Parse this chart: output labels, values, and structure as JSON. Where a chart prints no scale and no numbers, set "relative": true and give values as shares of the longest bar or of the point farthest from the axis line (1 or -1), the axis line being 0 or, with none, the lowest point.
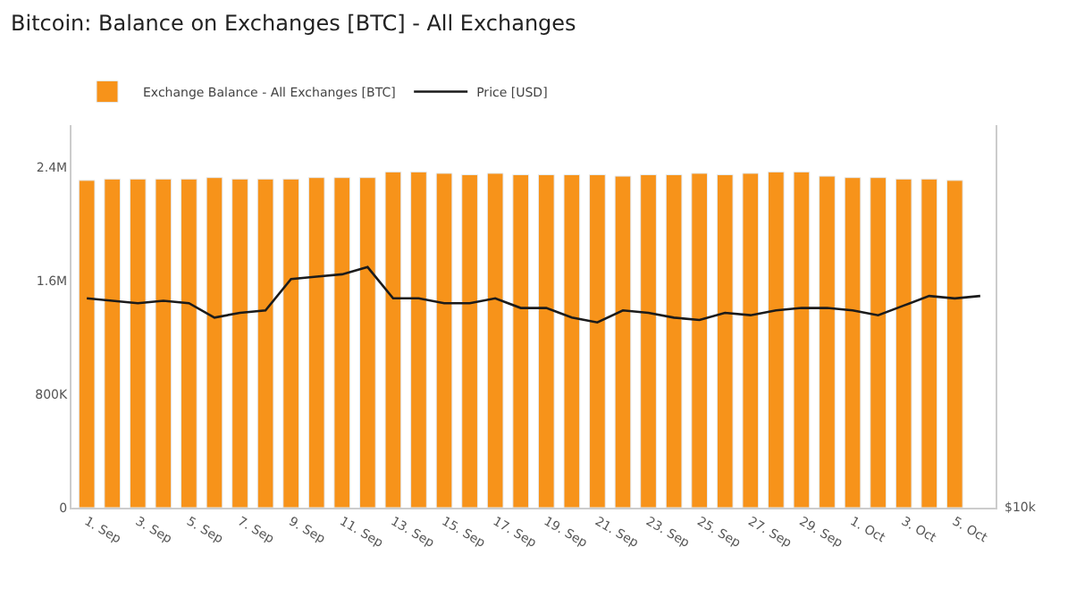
{
  "chart_data": [
    {
      "type": "bar",
      "title": "Bitcoin: Balance on Exchanges [BTC] - All Exchanges",
      "categories": [
        "1. Sep",
        null,
        "3. Sep",
        null,
        "5. Sep",
        null,
        "7. Sep",
        null,
        "9. Sep",
        null,
        "11. Sep",
        null,
        "13. Sep",
        null,
        "15. Sep",
        null,
        "17. Sep",
        null,
        "19. Sep",
        null,
        "21. Sep",
        null,
        "23. Sep",
        null,
        "25. Sep",
        null,
        "27. Sep",
        null,
        "29. Sep",
        null,
        "1. Oct",
        null,
        "3. Oct",
        null,
        "5. Oct",
        null
      ],
      "series": [
        {
          "name": "Exchange Balance - All Exchanges [BTC]",
          "color": "#f7931a",
          "values": [
            2310000,
            2320000,
            2320000,
            2320000,
            2320000,
            2330000,
            2320000,
            2320000,
            2320000,
            2330000,
            2330000,
            2330000,
            2370000,
            2370000,
            2360000,
            2350000,
            2360000,
            2350000,
            2350000,
            2350000,
            2350000,
            2340000,
            2350000,
            2350000,
            2360000,
            2350000,
            2360000,
            2370000,
            2370000,
            2340000,
            2330000,
            2330000,
            2320000,
            2320000,
            2310000,
            null
          ]
        }
      ],
      "ylim": [
        0,
        2700000
      ],
      "yticks": [
        {
          "value": 0,
          "label": "0"
        },
        {
          "value": 800000,
          "label": "800K"
        },
        {
          "value": 1600000,
          "label": "1.6M"
        },
        {
          "value": 2400000,
          "label": "2.4M"
        }
      ],
      "legend": "top left",
      "grid": false
    },
    {
      "type": "line",
      "relative": true,
      "categories": [
        null,
        null,
        null,
        null,
        null,
        null,
        null,
        null,
        null,
        null,
        null,
        null,
        null,
        null,
        null,
        null,
        null,
        null,
        null,
        null,
        null,
        null,
        null,
        null,
        null,
        null,
        null,
        null,
        null,
        null,
        null,
        null,
        null,
        null,
        null,
        null
      ],
      "series": [
        {
          "name": "Price [USD]",
          "color": "#1b1b1b",
          "values": [
            0.87,
            0.86,
            0.85,
            0.86,
            0.85,
            0.79,
            0.81,
            0.82,
            0.95,
            0.96,
            0.97,
            1,
            0.87,
            0.87,
            0.85,
            0.85,
            0.87,
            0.83,
            0.83,
            0.79,
            0.77,
            0.82,
            0.81,
            0.79,
            0.78,
            0.81,
            0.8,
            0.82,
            0.83,
            0.83,
            0.82,
            0.8,
            0.84,
            0.88,
            0.87,
            0.88
          ]
        }
      ],
      "annotations": [
        "$10k"
      ],
      "legend": "top left",
      "marker": "none",
      "line_style": "solid"
    }
  ]
}
